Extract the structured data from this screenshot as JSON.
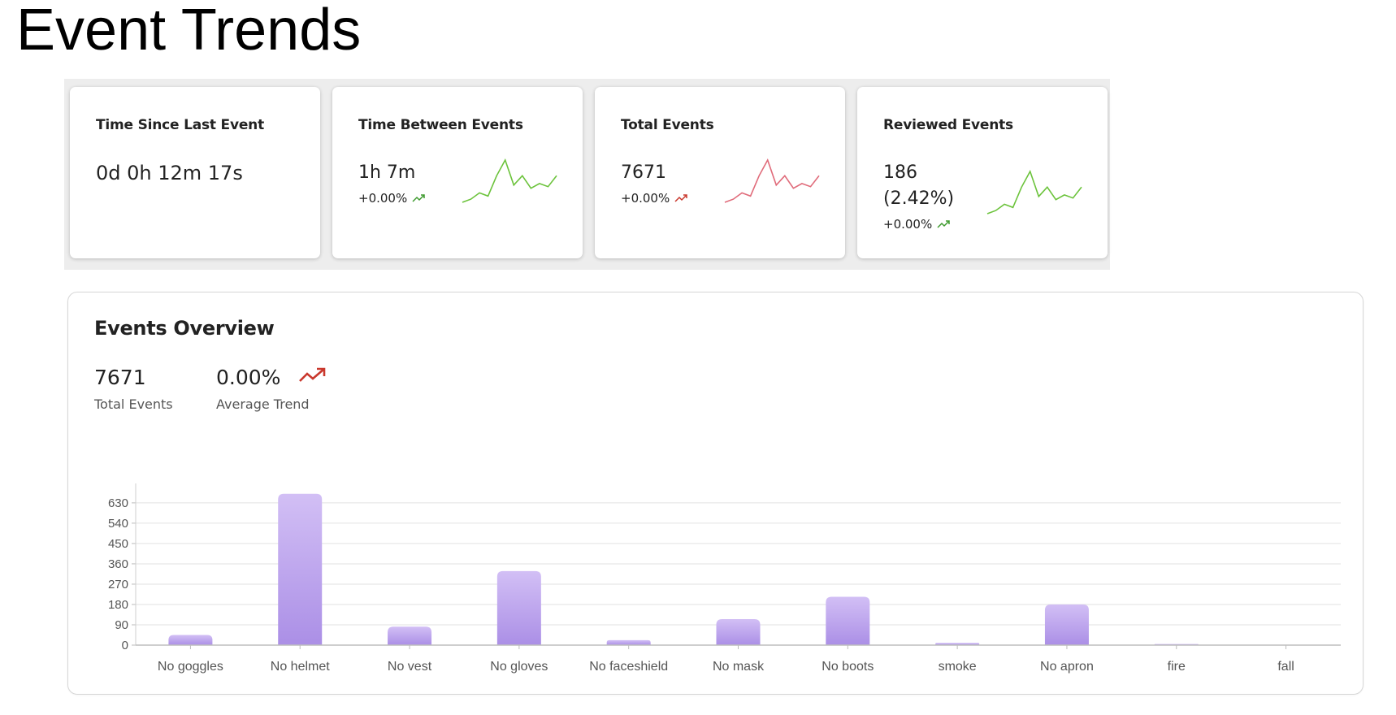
{
  "page": {
    "title": "Event Trends"
  },
  "colors": {
    "spark_green": "#6cc33c",
    "spark_red": "#e06b7a",
    "trend_green": "#3e9a2e",
    "trend_red": "#c9372c",
    "bar_top": "#d2bff5",
    "bar_bottom": "#ab8fe6"
  },
  "kpis": [
    {
      "title": "Time Since Last Event",
      "value": "0d 0h 12m 17s"
    },
    {
      "title": "Time Between Events",
      "value": "1h 7m",
      "trend": "+0.00%",
      "trend_icon": "trend-up-icon",
      "trend_color": "green",
      "spark_color": "green",
      "spark": [
        3,
        5,
        9,
        7,
        20,
        30,
        14,
        20,
        12,
        15,
        13,
        20
      ]
    },
    {
      "title": "Total Events",
      "value": "7671",
      "trend": "+0.00%",
      "trend_icon": "trend-up-icon",
      "trend_color": "red",
      "spark_color": "red",
      "spark": [
        3,
        5,
        9,
        7,
        20,
        30,
        14,
        20,
        12,
        15,
        13,
        20
      ]
    },
    {
      "title": "Reviewed Events",
      "value": "186 (2.42%)",
      "trend": "+0.00%",
      "trend_icon": "trend-up-icon",
      "trend_color": "green",
      "spark_color": "green",
      "spark": [
        3,
        5,
        9,
        7,
        20,
        30,
        14,
        20,
        12,
        15,
        13,
        20
      ]
    }
  ],
  "overview": {
    "title": "Events Overview",
    "total_value": "7671",
    "total_label": "Total Events",
    "avg_trend_value": "0.00%",
    "avg_trend_label": "Average Trend",
    "avg_trend_icon": "trend-up-icon"
  },
  "chart_data": {
    "type": "bar",
    "categories": [
      "No goggles",
      "No helmet",
      "No vest",
      "No gloves",
      "No faceshield",
      "No mask",
      "No boots",
      "smoke",
      "No apron",
      "fire",
      "fall"
    ],
    "values": [
      45,
      670,
      82,
      328,
      22,
      115,
      214,
      10,
      180,
      5,
      0
    ],
    "yticks": [
      0,
      90,
      180,
      270,
      360,
      450,
      540,
      630
    ],
    "ylim": [
      0,
      680
    ],
    "grid": true,
    "title": "",
    "xlabel": "",
    "ylabel": ""
  }
}
